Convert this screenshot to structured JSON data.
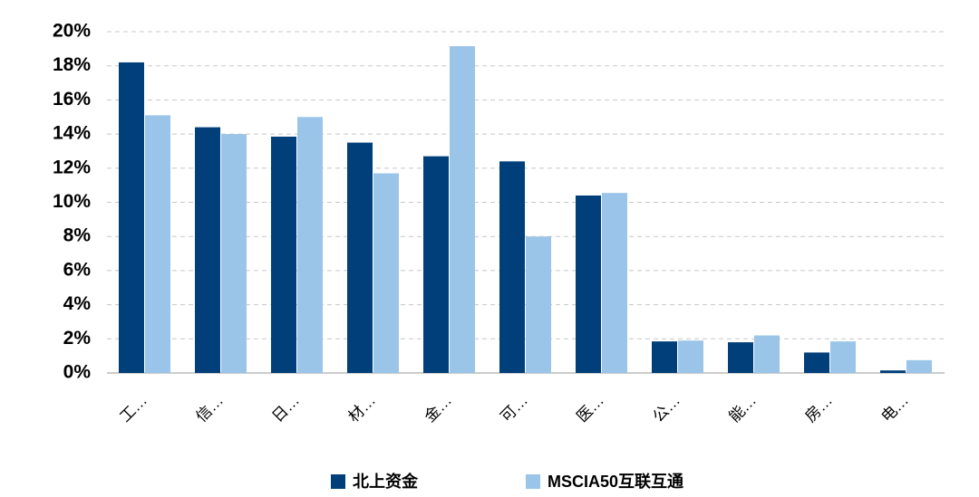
{
  "chart_data": {
    "type": "bar",
    "categories": [
      "工…",
      "信…",
      "日…",
      "材…",
      "金…",
      "可…",
      "医…",
      "公…",
      "能…",
      "房…",
      "电…"
    ],
    "series": [
      {
        "name": "北上资金",
        "color": "#003f7a",
        "values": [
          18.2,
          14.4,
          13.85,
          13.5,
          12.7,
          12.4,
          10.4,
          1.85,
          1.8,
          1.2,
          0.15
        ]
      },
      {
        "name": "MSCIA50互联互通",
        "color": "#9ac5e8",
        "values": [
          15.1,
          14.0,
          15.0,
          11.7,
          19.15,
          8.0,
          10.55,
          1.9,
          2.2,
          1.85,
          0.75
        ]
      }
    ],
    "ylim": [
      0,
      20
    ],
    "yticks": [
      {
        "value": 0,
        "label": "0%"
      },
      {
        "value": 2,
        "label": "2%"
      },
      {
        "value": 4,
        "label": "4%"
      },
      {
        "value": 6,
        "label": "6%"
      },
      {
        "value": 8,
        "label": "8%"
      },
      {
        "value": 10,
        "label": "10%"
      },
      {
        "value": 12,
        "label": "12%"
      },
      {
        "value": 14,
        "label": "14%"
      },
      {
        "value": 16,
        "label": "16%"
      },
      {
        "value": 18,
        "label": "18%"
      },
      {
        "value": 20,
        "label": "20%"
      }
    ],
    "grid": true,
    "legend": "bottom"
  }
}
